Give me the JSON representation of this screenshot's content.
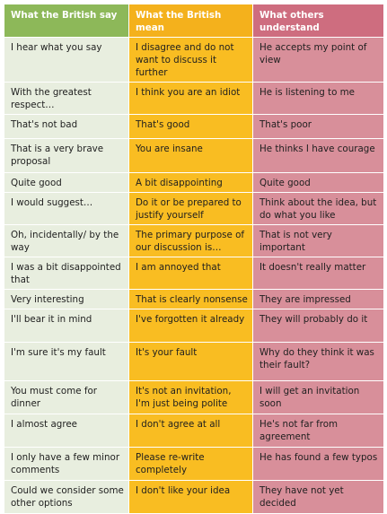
{
  "table": {
    "headers": [
      "What the British say",
      "What the British mean",
      "What others understand"
    ],
    "rows": [
      [
        "I hear what you say",
        "I disagree and do not want to discuss it further",
        "He accepts my point of view"
      ],
      [
        "With the greatest respect…",
        "I think you are an idiot",
        "He is listening to me"
      ],
      [
        "That's not bad",
        "That's good",
        "That's poor"
      ],
      [
        "That is a very brave proposal",
        "You are insane",
        "He thinks I have courage"
      ],
      [
        "Quite good",
        "A bit disappointing",
        "Quite good"
      ],
      [
        "I would suggest…",
        "Do it or be prepared to justify yourself",
        "Think about the idea, but do what you like"
      ],
      [
        "Oh, incidentally/ by the way",
        "The primary purpose of our discussion is…",
        "That is not very important"
      ],
      [
        "I was a bit disappointed that",
        "I am annoyed that",
        "It doesn't really matter"
      ],
      [
        "Very interesting",
        "That is clearly nonsense",
        "They are impressed"
      ],
      [
        "I'll bear it in mind",
        "I've forgotten it already",
        "They will probably do it"
      ],
      [
        "I'm sure it's my fault",
        "It's your fault",
        "Why do they think it was their fault?"
      ],
      [
        "You must come for dinner",
        "It's not an invitation, I'm just being polite",
        "I will get an invitation soon"
      ],
      [
        "I almost agree",
        "I don't agree at all",
        "He's not far from agreement"
      ],
      [
        "I only have a few minor comments",
        "Please re-write completely",
        "He has found a few typos"
      ],
      [
        "Could we consider some other options",
        "I don't like your idea",
        "They have not yet decided"
      ]
    ]
  },
  "colors": {
    "header_col1": "#8db859",
    "header_col2": "#f4b11c",
    "header_col3": "#ce6d7f",
    "cell_col1": "#e8eedf",
    "cell_col2": "#f9bd22",
    "cell_col3": "#d88f9a"
  }
}
